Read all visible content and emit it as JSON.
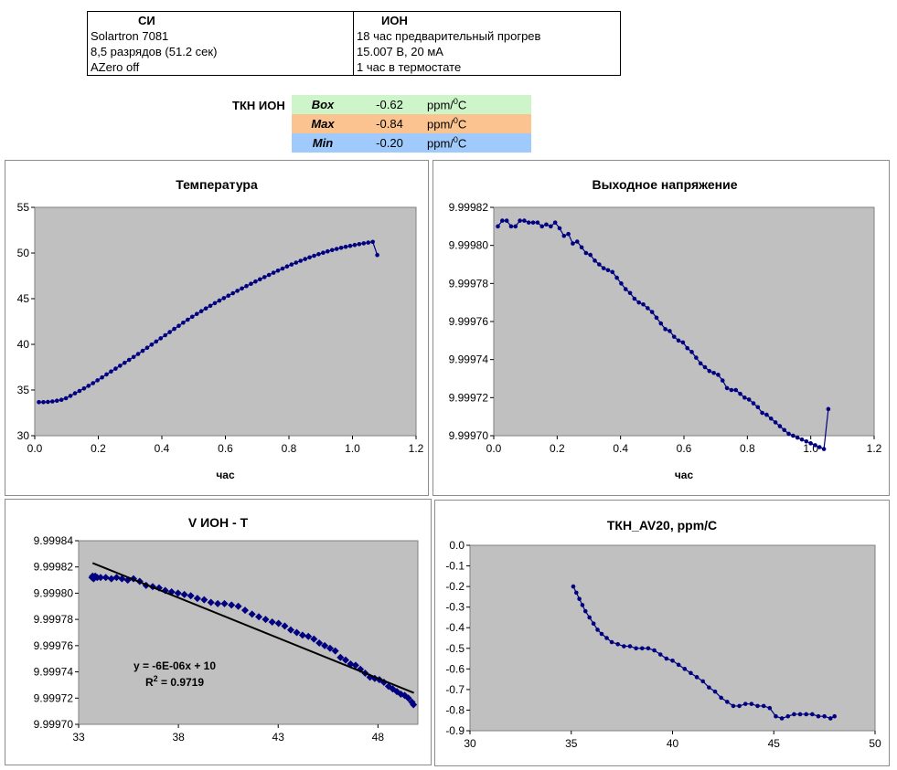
{
  "info_table": {
    "headers": [
      "СИ",
      "ИОН"
    ],
    "rows": [
      [
        "Solartron 7081",
        "18 час предварительный прогрев"
      ],
      [
        "8,5 разрядов (51.2 сек)",
        "15.007 В, 20 мА"
      ],
      [
        "AZero  off",
        "1 час в термостате"
      ]
    ]
  },
  "tkn": {
    "label": "ТКН ИОН",
    "rows": [
      {
        "key": "Box",
        "value": "-0.62",
        "unit": "ppm/",
        "unit_sup": "0",
        "unit_tail": "C",
        "color": "#cdf5c9"
      },
      {
        "key": "Max",
        "value": "-0.84",
        "unit": "ppm/",
        "unit_sup": "0",
        "unit_tail": "C",
        "color": "#fbc390"
      },
      {
        "key": "Min",
        "value": "-0.20",
        "unit": "ppm/",
        "unit_sup": "0",
        "unit_tail": "C",
        "color": "#9fcafb"
      }
    ]
  },
  "colors": {
    "plot_bg": "#c0c0c0",
    "series": "#000080",
    "trend": "#000000"
  },
  "chart_data": [
    {
      "type": "line",
      "title": "Температура",
      "xlabel": "час",
      "ylabel": "",
      "xlim": [
        0,
        1.2
      ],
      "ylim": [
        30,
        55
      ],
      "xticks": [
        "0.0",
        "0.2",
        "0.4",
        "0.6",
        "0.8",
        "1.0",
        "1.2"
      ],
      "yticks": [
        "30",
        "35",
        "40",
        "45",
        "50",
        "55"
      ],
      "series": [
        {
          "x_start": 0.013,
          "x_step": 0.0142,
          "values": [
            33.67,
            33.67,
            33.7,
            33.75,
            33.83,
            33.93,
            34.1,
            34.36,
            34.64,
            34.9,
            35.17,
            35.46,
            35.75,
            36.06,
            36.38,
            36.71,
            37.03,
            37.34,
            37.66,
            37.98,
            38.3,
            38.62,
            38.95,
            39.29,
            39.63,
            39.97,
            40.31,
            40.66,
            41.0,
            41.34,
            41.69,
            42.03,
            42.37,
            42.7,
            43.02,
            43.33,
            43.63,
            43.93,
            44.22,
            44.51,
            44.79,
            45.06,
            45.33,
            45.6,
            45.86,
            46.12,
            46.38,
            46.63,
            46.88,
            47.12,
            47.36,
            47.6,
            47.84,
            48.07,
            48.3,
            48.53,
            48.74,
            48.95,
            49.15,
            49.34,
            49.52,
            49.7,
            49.87,
            50.03,
            50.18,
            50.32,
            50.45,
            50.57,
            50.68,
            50.78,
            50.88,
            50.97,
            51.06,
            51.14,
            51.22,
            49.78
          ]
        }
      ]
    },
    {
      "type": "line",
      "title": "Выходное напряжение",
      "xlabel": "час",
      "ylabel": "",
      "xlim": [
        0,
        1.2
      ],
      "ylim": [
        9.9997,
        9.99982
      ],
      "xticks": [
        "0.0",
        "0.2",
        "0.4",
        "0.6",
        "0.8",
        "1.0",
        "1.2"
      ],
      "yticks": [
        "9.99970",
        "9.99972",
        "9.99974",
        "9.99976",
        "9.99978",
        "9.99980",
        "9.99982"
      ],
      "series": [
        {
          "x_start": 0.013,
          "x_step": 0.0139,
          "values": [
            9.99981,
            9.999813,
            9.999813,
            9.99981,
            9.99981,
            9.999813,
            9.999813,
            9.999812,
            9.999812,
            9.999812,
            9.99981,
            9.999811,
            9.99981,
            9.999812,
            9.999809,
            9.999805,
            9.999806,
            9.999801,
            9.999802,
            9.999799,
            9.999796,
            9.999795,
            9.999792,
            9.99979,
            9.999788,
            9.999787,
            9.999786,
            9.999783,
            9.99978,
            9.999777,
            9.999775,
            9.999772,
            9.99977,
            9.999769,
            9.999767,
            9.999765,
            9.999762,
            9.999759,
            9.999756,
            9.999755,
            9.999752,
            9.99975,
            9.999749,
            9.999746,
            9.999744,
            9.999741,
            9.999738,
            9.999736,
            9.999734,
            9.999733,
            9.999732,
            9.999729,
            9.999725,
            9.999724,
            9.999724,
            9.999722,
            9.99972,
            9.999719,
            9.999717,
            9.999715,
            9.999712,
            9.999711,
            9.999709,
            9.999707,
            9.999705,
            9.999703,
            9.999701,
            9.9997,
            9.999699,
            9.999698,
            9.999697,
            9.999696,
            9.999695,
            9.999694,
            9.999693,
            9.999714
          ]
        }
      ]
    },
    {
      "type": "scatter",
      "title": "V ИОН - T",
      "xlabel": "",
      "ylabel": "",
      "xlim": [
        33,
        50
      ],
      "ylim": [
        9.9997,
        9.99984
      ],
      "xticks": [
        "33",
        "38",
        "43",
        "48"
      ],
      "yticks": [
        "9.99970",
        "9.99972",
        "9.99974",
        "9.99976",
        "9.99978",
        "9.99980",
        "9.99982",
        "9.99984"
      ],
      "trendline": {
        "equation": "y = -6E-06x + 10",
        "r2_label": "R",
        "r2_sup": "2",
        "r2_value": " = 0.9719",
        "x": [
          33.7,
          49.8
        ],
        "y": [
          9.999823,
          9.999724
        ]
      },
      "series": [
        {
          "x": [
            33.67,
            33.7,
            33.75,
            33.83,
            33.93,
            34.1,
            34.36,
            34.64,
            34.9,
            35.17,
            35.46,
            35.75,
            36.06,
            36.38,
            36.71,
            37.03,
            37.34,
            37.66,
            37.98,
            38.3,
            38.62,
            38.95,
            39.29,
            39.63,
            39.97,
            40.31,
            40.66,
            41.0,
            41.34,
            41.69,
            42.03,
            42.37,
            42.7,
            43.02,
            43.33,
            43.63,
            43.93,
            44.22,
            44.51,
            44.79,
            45.06,
            45.33,
            45.6,
            45.86,
            46.12,
            46.38,
            46.63,
            46.88,
            47.12,
            47.36,
            47.6,
            47.84,
            48.07,
            48.3,
            48.53,
            48.74,
            48.95,
            49.15,
            49.34,
            49.52,
            49.7,
            49.78
          ],
          "y": [
            9.999812,
            9.999813,
            9.999811,
            9.999813,
            9.999812,
            9.999812,
            9.999812,
            9.999811,
            9.999812,
            9.999811,
            9.99981,
            9.999811,
            9.999809,
            9.999806,
            9.999805,
            9.999804,
            9.999802,
            9.999801,
            9.9998,
            9.999799,
            9.999798,
            9.999796,
            9.999795,
            9.999793,
            9.999792,
            9.999792,
            9.999791,
            9.99979,
            9.999787,
            9.999784,
            9.999782,
            9.99978,
            9.999778,
            9.999777,
            9.999775,
            9.999772,
            9.99977,
            9.999768,
            9.999767,
            9.999765,
            9.999762,
            9.99976,
            9.999758,
            9.999756,
            9.999751,
            9.999749,
            9.999746,
            9.999745,
            9.999742,
            9.999739,
            9.999736,
            9.999735,
            9.999734,
            9.999732,
            9.999729,
            9.999727,
            9.999725,
            9.999723,
            9.999722,
            9.99972,
            9.999717,
            9.999715
          ]
        }
      ]
    },
    {
      "type": "line",
      "title": "ТКН_AV20, ppm/C",
      "xlabel": "",
      "ylabel": "",
      "xlim": [
        30,
        50
      ],
      "ylim": [
        -0.9,
        0
      ],
      "xticks": [
        "30",
        "35",
        "40",
        "45",
        "50"
      ],
      "yticks": [
        "0.0",
        "-0.1",
        "-0.2",
        "-0.3",
        "-0.4",
        "-0.5",
        "-0.6",
        "-0.7",
        "-0.8",
        "-0.9"
      ],
      "series": [
        {
          "x": [
            35.1,
            35.25,
            35.4,
            35.55,
            35.7,
            35.9,
            36.1,
            36.3,
            36.5,
            36.75,
            37.0,
            37.3,
            37.6,
            37.9,
            38.2,
            38.5,
            38.8,
            39.1,
            39.4,
            39.7,
            40.0,
            40.3,
            40.6,
            40.9,
            41.2,
            41.5,
            41.8,
            42.1,
            42.4,
            42.7,
            43.0,
            43.3,
            43.6,
            43.9,
            44.2,
            44.5,
            44.8,
            45.1,
            45.4,
            45.7,
            46.0,
            46.3,
            46.6,
            46.9,
            47.2,
            47.5,
            47.8,
            48.0
          ],
          "y": [
            -0.2,
            -0.23,
            -0.26,
            -0.29,
            -0.32,
            -0.35,
            -0.38,
            -0.41,
            -0.43,
            -0.45,
            -0.47,
            -0.48,
            -0.49,
            -0.49,
            -0.5,
            -0.5,
            -0.5,
            -0.51,
            -0.53,
            -0.55,
            -0.56,
            -0.58,
            -0.6,
            -0.62,
            -0.64,
            -0.66,
            -0.69,
            -0.71,
            -0.74,
            -0.76,
            -0.78,
            -0.78,
            -0.77,
            -0.77,
            -0.78,
            -0.78,
            -0.79,
            -0.83,
            -0.84,
            -0.83,
            -0.82,
            -0.82,
            -0.82,
            -0.82,
            -0.83,
            -0.83,
            -0.84,
            -0.83
          ]
        }
      ]
    }
  ]
}
